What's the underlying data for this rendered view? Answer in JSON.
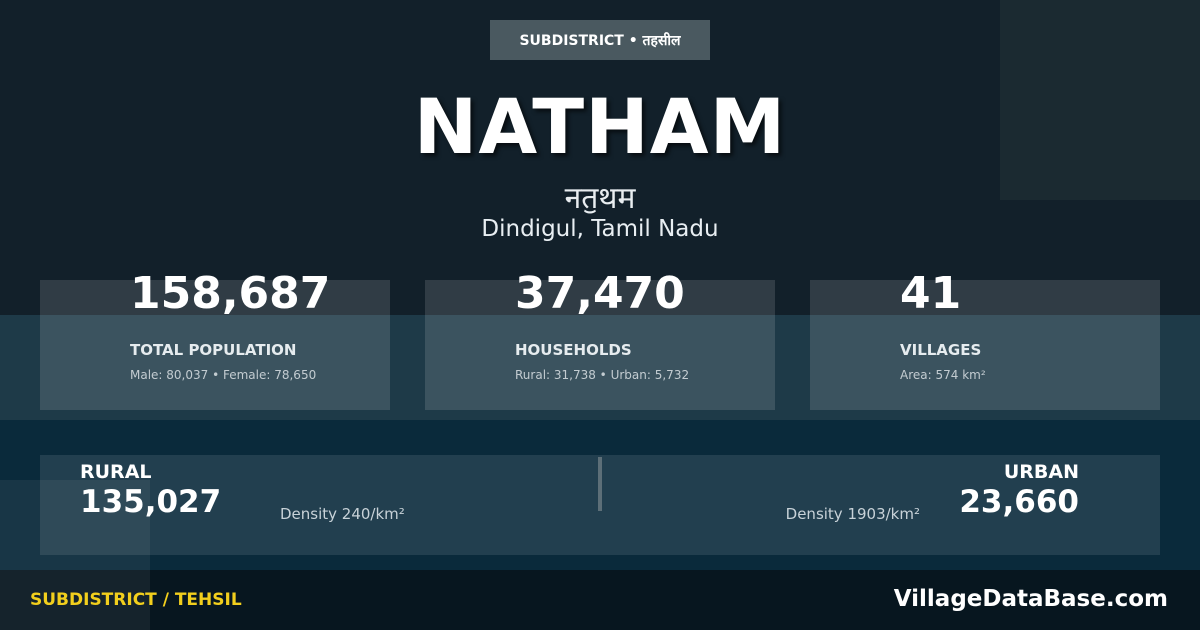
{
  "badge": "SUBDISTRICT • तहसील",
  "title": "NATHAM",
  "title_hindi": "नतॖथम",
  "location": "Dindigul, Tamil Nadu",
  "stats": [
    {
      "value": "158,687",
      "label": "TOTAL POPULATION",
      "sub": "Male: 80,037 • Female: 78,650"
    },
    {
      "value": "37,470",
      "label": "HOUSEHOLDS",
      "sub": "Rural: 31,738 • Urban: 5,732"
    },
    {
      "value": "41",
      "label": "VILLAGES",
      "sub": "Area: 574 km²"
    }
  ],
  "rural": {
    "label": "RURAL",
    "value": "135,027",
    "density": "Density 240/km²"
  },
  "urban": {
    "label": "URBAN",
    "value": "23,660",
    "density": "Density 1903/km²"
  },
  "footer": {
    "category": "SUBDISTRICT / TEHSIL",
    "brand": "VillageDataBase.com"
  },
  "colors": {
    "accent": "#f2cf1d",
    "background": "#12202a"
  }
}
